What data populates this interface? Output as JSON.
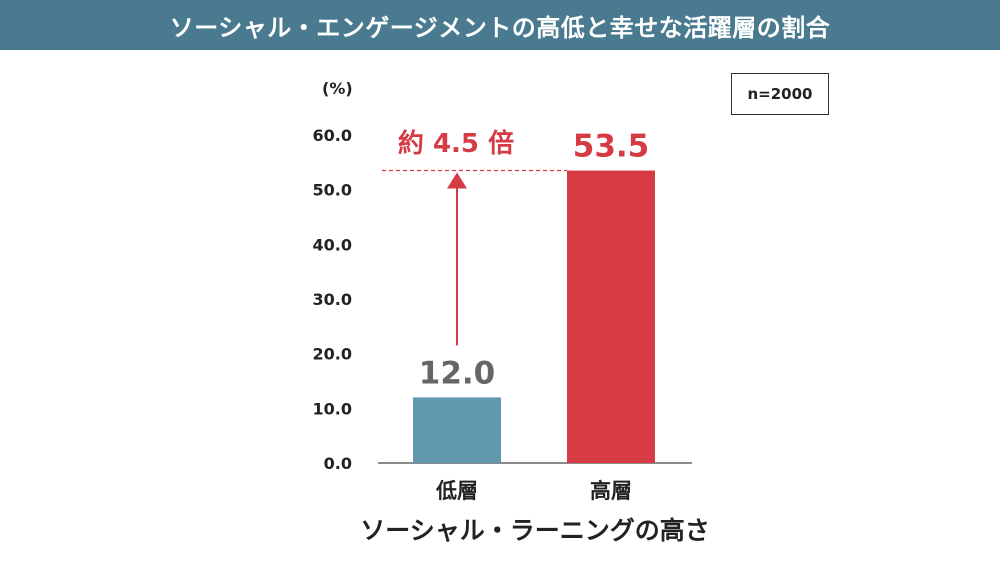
{
  "header": {
    "title": "ソーシャル・エンゲージメントの高低と幸せな活躍層の割合",
    "background": "#4a7a8f"
  },
  "sample_note": "n=2000",
  "chart_data": {
    "type": "bar",
    "title": "ソーシャル・エンゲージメントの高低と幸せな活躍層の割合",
    "unit": "(%)",
    "xlabel": "ソーシャル・ラーニングの高さ",
    "ylabel": "",
    "categories": [
      "低層",
      "高層"
    ],
    "values": [
      12.0,
      53.5
    ],
    "value_labels": [
      "12.0",
      "53.5"
    ],
    "bar_colors": [
      "#6198ae",
      "#d63b44"
    ],
    "value_label_colors": [
      "#666666",
      "#d63b44"
    ],
    "ylim": [
      0,
      60
    ],
    "yticks": [
      0,
      10,
      20,
      30,
      40,
      50,
      60
    ],
    "ytick_labels": [
      "0.0",
      "10.0",
      "20.0",
      "30.0",
      "40.0",
      "50.0",
      "60.0"
    ],
    "grid": false,
    "annotation": {
      "text": "約 4.5 倍",
      "color": "#d63b44",
      "from_value": 12.0,
      "to_value": 53.5
    }
  }
}
